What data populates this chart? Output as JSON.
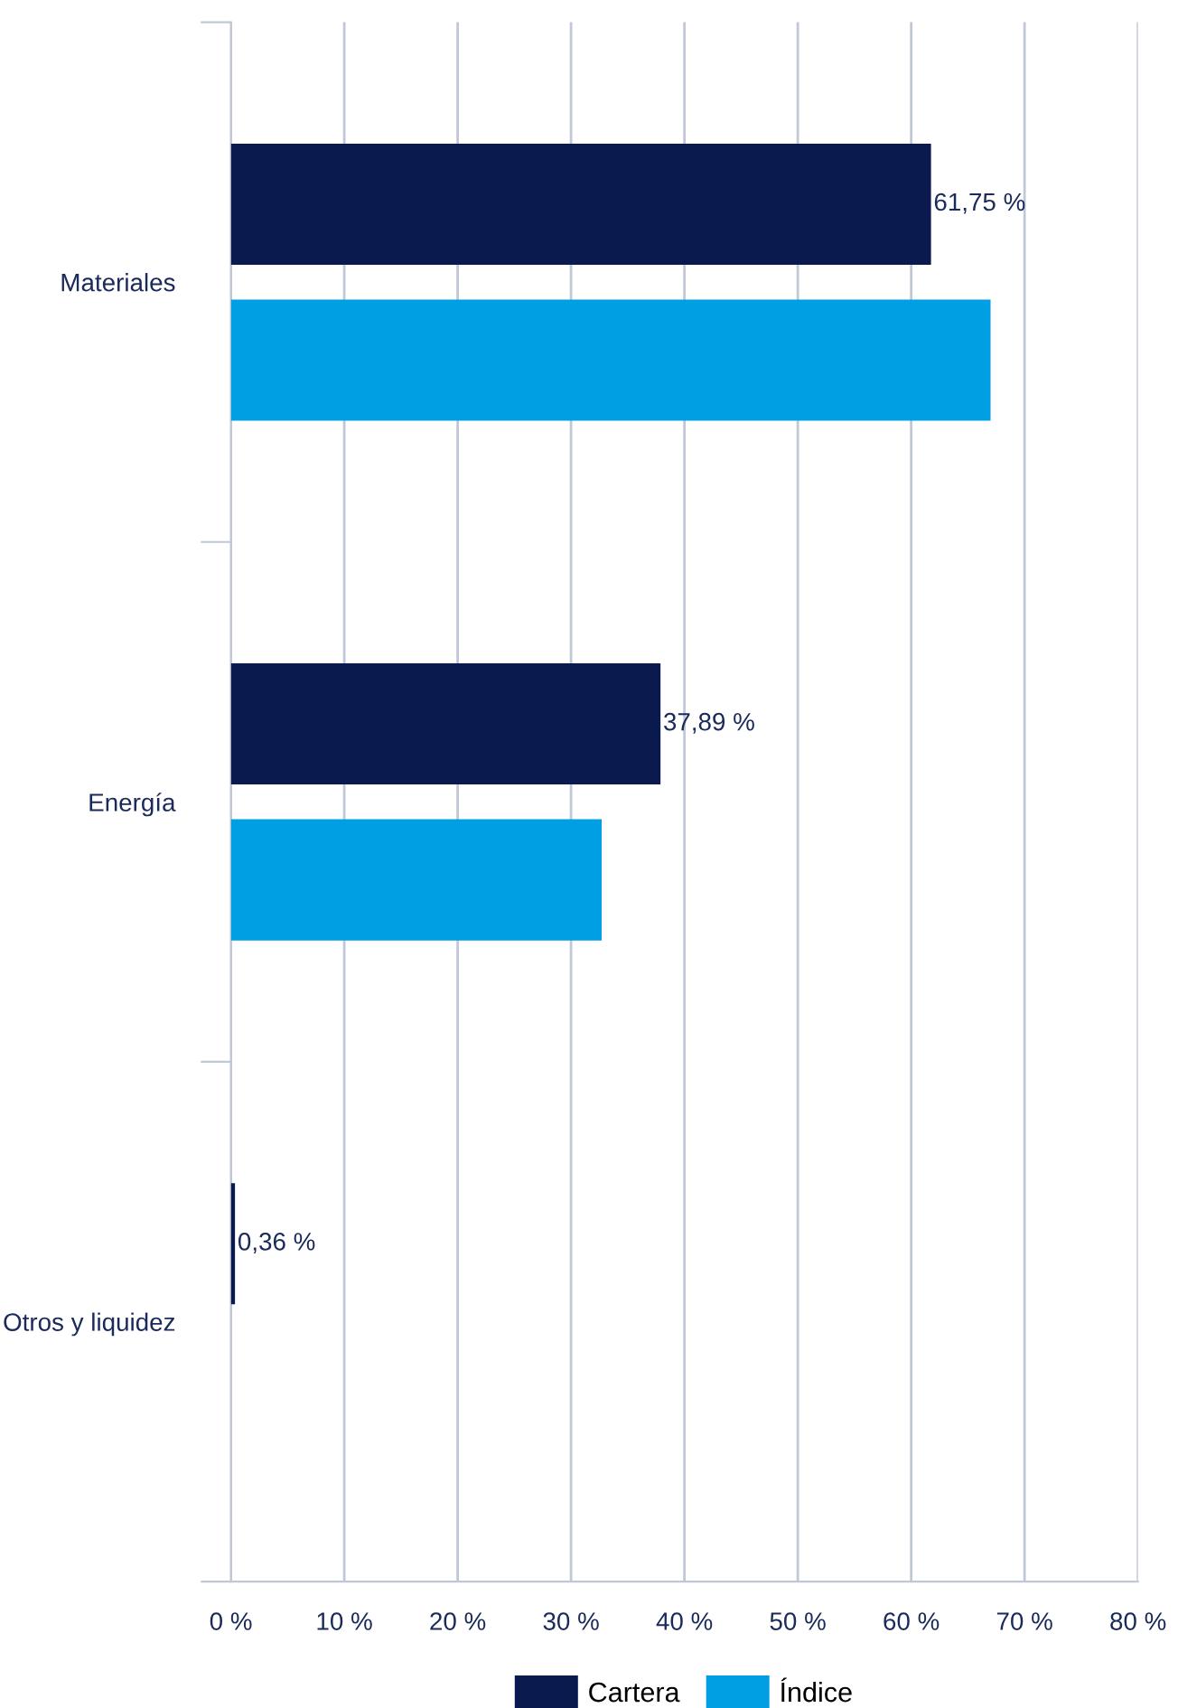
{
  "chart_data": {
    "type": "bar",
    "orientation": "horizontal",
    "categories": [
      "Materiales",
      "Energía",
      "Otros y liquidez"
    ],
    "series": [
      {
        "name": "Cartera",
        "color": "#0a1a4f",
        "values": [
          61.75,
          37.89,
          0.36
        ],
        "value_labels": [
          "61,75 %",
          "37,89 %",
          "0,36 %"
        ]
      },
      {
        "name": "Índice",
        "color": "#009fe3",
        "values": [
          67.0,
          32.7,
          null
        ]
      }
    ],
    "xlim": [
      0,
      80
    ],
    "xticks": [
      {
        "value": 0,
        "label": "0 %"
      },
      {
        "value": 10,
        "label": "10 %"
      },
      {
        "value": 20,
        "label": "20 %"
      },
      {
        "value": 30,
        "label": "30 %"
      },
      {
        "value": 40,
        "label": "40 %"
      },
      {
        "value": 50,
        "label": "50 %"
      },
      {
        "value": 60,
        "label": "60 %"
      },
      {
        "value": 70,
        "label": "70 %"
      },
      {
        "value": 80,
        "label": "80 %"
      }
    ],
    "grid": "x",
    "legend": "bottom"
  }
}
